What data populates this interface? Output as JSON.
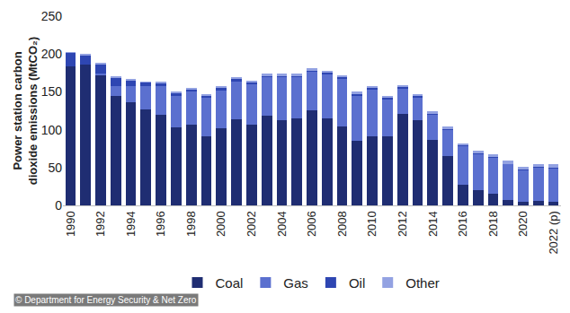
{
  "chart_data": {
    "type": "bar",
    "y_label": "Power station carbon dioxide emissions (MtCO₂)",
    "annotations": [
      "© Department for Energy Security & Net Zero"
    ],
    "categories": [
      "1990",
      null,
      "1992",
      null,
      "1994",
      null,
      "1996",
      null,
      "1998",
      null,
      "2000",
      null,
      "2002",
      null,
      "2004",
      null,
      "2006",
      null,
      "2008",
      null,
      "2010",
      null,
      "2012",
      null,
      "2014",
      null,
      "2016",
      null,
      "2018",
      null,
      "2020",
      null,
      "2022 (p)"
    ],
    "series": [
      {
        "name": "Coal",
        "color": "#1f2d72",
        "values": [
          184,
          186,
          172,
          144,
          136,
          127,
          120,
          103,
          107,
          91,
          102,
          114,
          107,
          118,
          112,
          115,
          126,
          115,
          104,
          85,
          91,
          91,
          121,
          112,
          87,
          65,
          27,
          20,
          15,
          7,
          5,
          6,
          5
        ]
      },
      {
        "name": "Gas",
        "color": "#5b70cf",
        "values": [
          0,
          0,
          2,
          14,
          22,
          30,
          37,
          42,
          43,
          51,
          50,
          50,
          53,
          51,
          57,
          54,
          50,
          58,
          63,
          60,
          62,
          49,
          33,
          30,
          33,
          35,
          51,
          48,
          48,
          47,
          41,
          44,
          44
        ]
      },
      {
        "name": "Oil",
        "color": "#2e46b2",
        "values": [
          17,
          12,
          12,
          10,
          7,
          5,
          4,
          3,
          3,
          3,
          3,
          3,
          2,
          2,
          2,
          2,
          2,
          2,
          2,
          2,
          2,
          2,
          2,
          2,
          1,
          1,
          1,
          1,
          1,
          1,
          1,
          1,
          1
        ]
      },
      {
        "name": "Other",
        "color": "#93a2e2",
        "values": [
          2,
          2,
          2,
          3,
          2,
          2,
          2,
          2,
          2,
          2,
          3,
          3,
          3,
          3,
          3,
          3,
          3,
          3,
          3,
          3,
          3,
          3,
          3,
          3,
          3,
          3,
          3,
          3,
          3,
          4,
          4,
          4,
          4
        ]
      }
    ],
    "ylim": [
      0,
      250
    ],
    "yticks": [
      0,
      50,
      100,
      150,
      200,
      250
    ],
    "stacked": true,
    "grid": false,
    "legend": "bottom"
  }
}
